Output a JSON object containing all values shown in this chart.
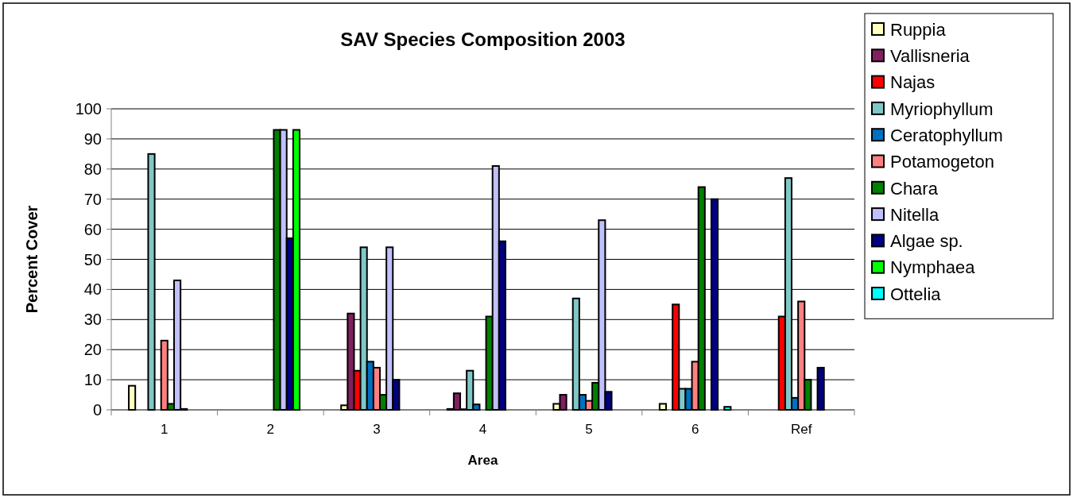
{
  "chart_data": {
    "type": "bar",
    "title": "SAV Species Composition 2003",
    "xlabel": "Area",
    "ylabel": "Percent Cover",
    "categories": [
      "1",
      "2",
      "3",
      "4",
      "5",
      "6",
      "Ref"
    ],
    "series": [
      {
        "name": "Ruppia",
        "color": "#ffffc0",
        "values": [
          8,
          0,
          1.5,
          0.3,
          2,
          2,
          0
        ]
      },
      {
        "name": "Vallisneria",
        "color": "#802060",
        "values": [
          0,
          0,
          32,
          5.5,
          5,
          0,
          0
        ]
      },
      {
        "name": "Najas",
        "color": "#ff0000",
        "values": [
          0,
          0,
          13,
          0.2,
          0,
          35,
          31
        ]
      },
      {
        "name": "Myriophyllum",
        "color": "#80c8c8",
        "values": [
          85,
          0,
          54,
          13,
          37,
          7,
          77
        ]
      },
      {
        "name": "Ceratophyllum",
        "color": "#0070c0",
        "values": [
          0,
          0,
          16,
          1.8,
          5,
          7,
          4
        ]
      },
      {
        "name": "Potamogeton",
        "color": "#ff8080",
        "values": [
          23,
          0,
          14,
          0,
          3,
          16,
          36
        ]
      },
      {
        "name": "Chara",
        "color": "#008000",
        "values": [
          2,
          93,
          5,
          31,
          9,
          74,
          10
        ]
      },
      {
        "name": "Nitella",
        "color": "#c0c0ff",
        "values": [
          43,
          93,
          54,
          81,
          63,
          0,
          0
        ]
      },
      {
        "name": "Algae sp.",
        "color": "#000080",
        "values": [
          0.3,
          57,
          10,
          56,
          6,
          70,
          14
        ]
      },
      {
        "name": "Nymphaea",
        "color": "#00ff00",
        "values": [
          0,
          93,
          0,
          0,
          0,
          0,
          0
        ]
      },
      {
        "name": "Ottelia",
        "color": "#00ffff",
        "values": [
          0,
          0,
          0,
          0,
          0,
          1,
          0
        ]
      }
    ],
    "ylim": [
      0,
      100
    ],
    "yticks": [
      0,
      10,
      20,
      30,
      40,
      50,
      60,
      70,
      80,
      90,
      100
    ],
    "grid": "y",
    "legend": "top right"
  }
}
